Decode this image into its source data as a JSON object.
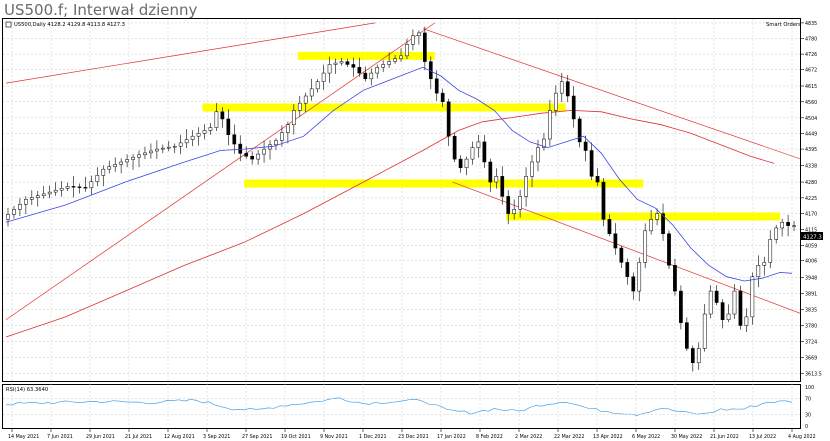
{
  "header": {
    "title": "US500.f; Interwał dzienny"
  },
  "main_panel": {
    "instrument_label": "US500,Daily  4128.2 4129.8 4113.8 4127.3",
    "indicator_label": "Smart Orders",
    "current_price_label": "4127.3"
  },
  "rsi_panel": {
    "label": "RSI(14) 63.3640",
    "levels": [
      {
        "v": 100,
        "label": "100"
      },
      {
        "v": 70,
        "label": "70"
      },
      {
        "v": 30,
        "label": "30"
      },
      {
        "v": 0,
        "label": "0"
      }
    ]
  },
  "colors": {
    "candle": "#000000",
    "ma_fast": "#3a46e6",
    "ma_slow": "#e03030",
    "trendline": "#e03030",
    "zone": "#ffff00",
    "grid": "#c8c8c8",
    "rsi": "#4aa3e8"
  },
  "chart_data": {
    "type": "candlestick",
    "y_axis": {
      "range": [
        3590,
        4845
      ],
      "ticks": [
        4835,
        4780,
        4726,
        4672,
        4615,
        4560,
        4504,
        4449,
        4395,
        4338,
        4280,
        4225,
        4170,
        4115,
        4059,
        4006,
        3948,
        3891,
        3835,
        3780,
        3724,
        3669,
        3613.5
      ]
    },
    "x_axis": {
      "labels": [
        "14 May 2021",
        "7 Jun 2021",
        "29 Jun 2021",
        "21 Jul 2021",
        "12 Aug 2021",
        "3 Sep 2021",
        "27 Sep 2021",
        "19 Oct 2021",
        "9 Nov 2021",
        "1 Dec 2021",
        "23 Dec 2021",
        "17 Jan 2022",
        "8 Feb 2022",
        "2 Mar 2022",
        "22 Mar 2022",
        "13 Apr 2022",
        "6 May 2022",
        "30 May 2022",
        "21 Jun 2022",
        "13 Jul 2022",
        "4 Aug 2022"
      ]
    },
    "price_path": [
      [
        0,
        4150
      ],
      [
        4,
        4220
      ],
      [
        8,
        4245
      ],
      [
        11,
        4265
      ],
      [
        14,
        4260
      ],
      [
        17,
        4325
      ],
      [
        20,
        4350
      ],
      [
        23,
        4375
      ],
      [
        26,
        4395
      ],
      [
        29,
        4405
      ],
      [
        32,
        4440
      ],
      [
        35,
        4470
      ],
      [
        36,
        4525
      ],
      [
        37,
        4500
      ],
      [
        38,
        4445
      ],
      [
        40,
        4380
      ],
      [
        42,
        4360
      ],
      [
        44,
        4395
      ],
      [
        46,
        4425
      ],
      [
        48,
        4480
      ],
      [
        49,
        4530
      ],
      [
        51,
        4580
      ],
      [
        53,
        4630
      ],
      [
        55,
        4690
      ],
      [
        57,
        4700
      ],
      [
        59,
        4680
      ],
      [
        61,
        4640
      ],
      [
        63,
        4680
      ],
      [
        65,
        4700
      ],
      [
        67,
        4720
      ],
      [
        68,
        4760
      ],
      [
        69,
        4790
      ],
      [
        70,
        4800
      ],
      [
        71,
        4700
      ],
      [
        72,
        4640
      ],
      [
        73,
        4590
      ],
      [
        74,
        4560
      ],
      [
        75,
        4440
      ],
      [
        76,
        4360
      ],
      [
        77,
        4330
      ],
      [
        78,
        4360
      ],
      [
        79,
        4400
      ],
      [
        80,
        4420
      ],
      [
        81,
        4350
      ],
      [
        82,
        4280
      ],
      [
        83,
        4300
      ],
      [
        84,
        4230
      ],
      [
        85,
        4170
      ],
      [
        86,
        4185
      ],
      [
        87,
        4230
      ],
      [
        88,
        4300
      ],
      [
        89,
        4350
      ],
      [
        90,
        4400
      ],
      [
        91,
        4430
      ],
      [
        92,
        4530
      ],
      [
        93,
        4590
      ],
      [
        94,
        4630
      ],
      [
        95,
        4580
      ],
      [
        96,
        4500
      ],
      [
        97,
        4420
      ],
      [
        98,
        4390
      ],
      [
        99,
        4300
      ],
      [
        100,
        4280
      ],
      [
        101,
        4150
      ],
      [
        102,
        4100
      ],
      [
        103,
        4050
      ],
      [
        104,
        4000
      ],
      [
        105,
        3950
      ],
      [
        106,
        3900
      ],
      [
        107,
        4000
      ],
      [
        108,
        4110
      ],
      [
        109,
        4150
      ],
      [
        110,
        4170
      ],
      [
        111,
        4100
      ],
      [
        112,
        3990
      ],
      [
        113,
        3900
      ],
      [
        114,
        3790
      ],
      [
        115,
        3700
      ],
      [
        116,
        3650
      ],
      [
        117,
        3700
      ],
      [
        118,
        3820
      ],
      [
        119,
        3900
      ],
      [
        120,
        3860
      ],
      [
        121,
        3800
      ],
      [
        122,
        3820
      ],
      [
        123,
        3900
      ],
      [
        124,
        3780
      ],
      [
        125,
        3810
      ],
      [
        126,
        3950
      ],
      [
        127,
        3990
      ],
      [
        128,
        4000
      ],
      [
        129,
        4080
      ],
      [
        130,
        4120
      ],
      [
        131,
        4140
      ],
      [
        132,
        4128
      ]
    ],
    "ma_fast_path": [
      [
        0,
        4140
      ],
      [
        10,
        4200
      ],
      [
        20,
        4280
      ],
      [
        30,
        4350
      ],
      [
        36,
        4390
      ],
      [
        40,
        4395
      ],
      [
        45,
        4405
      ],
      [
        50,
        4440
      ],
      [
        55,
        4530
      ],
      [
        60,
        4600
      ],
      [
        65,
        4640
      ],
      [
        70,
        4680
      ],
      [
        73,
        4650
      ],
      [
        76,
        4600
      ],
      [
        79,
        4570
      ],
      [
        82,
        4530
      ],
      [
        85,
        4460
      ],
      [
        88,
        4420
      ],
      [
        91,
        4400
      ],
      [
        94,
        4420
      ],
      [
        97,
        4440
      ],
      [
        100,
        4380
      ],
      [
        103,
        4290
      ],
      [
        106,
        4220
      ],
      [
        109,
        4190
      ],
      [
        112,
        4130
      ],
      [
        115,
        4050
      ],
      [
        118,
        3990
      ],
      [
        121,
        3950
      ],
      [
        124,
        3935
      ],
      [
        127,
        3945
      ],
      [
        130,
        3965
      ],
      [
        132,
        3962
      ]
    ],
    "ma_slow_path": [
      [
        0,
        3740
      ],
      [
        10,
        3810
      ],
      [
        20,
        3900
      ],
      [
        30,
        3990
      ],
      [
        40,
        4070
      ],
      [
        50,
        4170
      ],
      [
        60,
        4280
      ],
      [
        70,
        4390
      ],
      [
        76,
        4460
      ],
      [
        80,
        4490
      ],
      [
        85,
        4505
      ],
      [
        90,
        4520
      ],
      [
        95,
        4530
      ],
      [
        100,
        4525
      ],
      [
        105,
        4500
      ],
      [
        110,
        4480
      ],
      [
        115,
        4450
      ],
      [
        120,
        4410
      ],
      [
        125,
        4370
      ],
      [
        129,
        4345
      ]
    ],
    "trendlines": [
      {
        "p1": [
          0,
          3800
        ],
        "p2": [
          72,
          4835
        ]
      },
      {
        "p1": [
          0,
          4625
        ],
        "p2": [
          62,
          4835
        ]
      },
      {
        "p1": [
          70,
          4815
        ],
        "p2": [
          160,
          4170
        ]
      },
      {
        "p1": [
          75,
          4280
        ],
        "p2": [
          160,
          3613.5
        ]
      }
    ],
    "zones": [
      {
        "x0": 49,
        "x1": 72,
        "y": 4720
      },
      {
        "x0": 33,
        "x1": 94,
        "y": 4540
      },
      {
        "x0": 40,
        "x1": 107,
        "y": 4275
      },
      {
        "x0": 84,
        "x1": 130,
        "y": 4160
      }
    ],
    "rsi_path": [
      [
        0,
        56
      ],
      [
        8,
        60
      ],
      [
        16,
        63
      ],
      [
        24,
        60
      ],
      [
        32,
        66
      ],
      [
        38,
        45
      ],
      [
        42,
        40
      ],
      [
        46,
        52
      ],
      [
        52,
        62
      ],
      [
        56,
        72
      ],
      [
        60,
        58
      ],
      [
        64,
        62
      ],
      [
        70,
        66
      ],
      [
        74,
        40
      ],
      [
        78,
        34
      ],
      [
        82,
        44
      ],
      [
        86,
        38
      ],
      [
        90,
        55
      ],
      [
        94,
        64
      ],
      [
        98,
        44
      ],
      [
        102,
        36
      ],
      [
        106,
        30
      ],
      [
        110,
        46
      ],
      [
        114,
        34
      ],
      [
        117,
        30
      ],
      [
        120,
        42
      ],
      [
        124,
        44
      ],
      [
        128,
        62
      ],
      [
        132,
        63
      ]
    ]
  }
}
